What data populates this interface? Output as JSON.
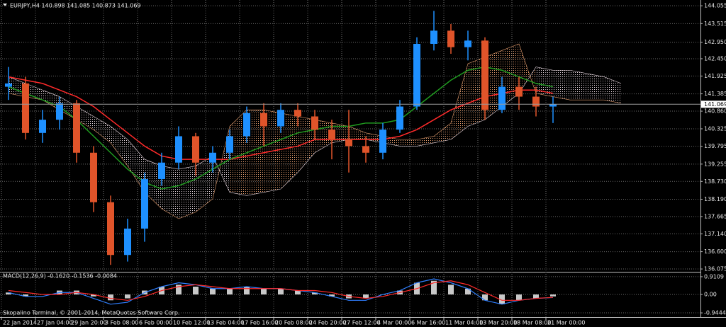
{
  "chart_data": [
    {
      "type": "candlestick",
      "title": "EURJPY,H4  140.898 141.085 140.873 141.069",
      "last_price": 141.069,
      "ylim": [
        135.99,
        144.23
      ],
      "yticks": [
        144.055,
        143.515,
        {
          "value": 142.95,
          "label": "142.950"
        },
        {
          "value": 142.45,
          "label": "142.450"
        },
        141.925,
        141.385,
        {
          "value": 140.86,
          "label": "140.860"
        },
        140.325,
        139.795,
        139.255,
        {
          "value": 138.73,
          "label": "138.730"
        },
        {
          "value": 138.19,
          "label": "138.190"
        },
        137.665,
        {
          "value": 137.14,
          "label": "137.140"
        },
        {
          "value": 136.6,
          "label": "136.600"
        },
        136.075
      ],
      "grid": true,
      "up_color": "#1e90ff",
      "down_color": "#e0542a",
      "open": [
        141.6,
        141.7,
        140.2,
        140.6,
        141.1,
        139.6,
        138.1,
        136.5,
        137.3,
        138.8,
        139.3,
        140.1,
        139.3,
        139.6,
        140.1,
        140.8,
        140.4,
        140.9,
        140.7,
        140.3,
        140.0,
        139.8,
        139.6,
        140.3,
        141.0,
        142.9,
        143.3,
        142.8,
        143.0,
        140.9,
        141.6,
        141.3,
        141.0
      ],
      "high": [
        142.2,
        141.9,
        140.9,
        141.3,
        141.2,
        139.8,
        138.3,
        137.6,
        139.0,
        139.6,
        140.4,
        140.2,
        139.8,
        140.3,
        141.0,
        141.1,
        141.1,
        141.1,
        140.9,
        140.6,
        140.9,
        140.1,
        140.5,
        141.2,
        143.1,
        143.9,
        143.5,
        143.3,
        143.1,
        141.9,
        141.9,
        141.6,
        141.3
      ],
      "low": [
        141.2,
        140.0,
        139.9,
        140.3,
        139.3,
        137.8,
        136.2,
        136.3,
        136.9,
        138.6,
        139.1,
        138.9,
        139.0,
        139.4,
        139.9,
        139.8,
        140.2,
        140.4,
        140.0,
        139.4,
        139.0,
        139.3,
        139.4,
        140.2,
        140.9,
        142.7,
        142.6,
        142.4,
        140.6,
        140.8,
        140.9,
        140.7,
        140.5
      ],
      "close": [
        141.7,
        140.2,
        140.6,
        141.1,
        139.6,
        138.1,
        136.5,
        137.3,
        138.8,
        139.3,
        140.1,
        139.3,
        139.6,
        140.1,
        140.8,
        140.4,
        140.9,
        140.7,
        140.3,
        140.0,
        139.8,
        139.6,
        140.3,
        141.0,
        142.9,
        143.3,
        142.8,
        143.0,
        140.9,
        141.6,
        141.3,
        141.0,
        141.069
      ],
      "lines": [
        {
          "color": "#ff2a2a",
          "values": [
            141.9,
            141.8,
            141.7,
            141.5,
            141.3,
            141.0,
            140.6,
            140.2,
            139.8,
            139.5,
            139.4,
            139.4,
            139.4,
            139.4,
            139.5,
            139.6,
            139.7,
            139.8,
            140.0,
            140.0,
            140.0,
            140.0,
            140.0,
            140.1,
            140.3,
            140.6,
            140.9,
            141.1,
            141.3,
            141.4,
            141.5,
            141.5,
            141.4
          ]
        },
        {
          "color": "#1f9a1f",
          "values": [
            141.6,
            141.4,
            141.2,
            141.0,
            140.6,
            140.1,
            139.6,
            139.1,
            138.7,
            138.5,
            138.6,
            138.8,
            139.1,
            139.4,
            139.6,
            139.8,
            140.0,
            140.2,
            140.3,
            140.4,
            140.4,
            140.5,
            140.5,
            140.6,
            141.0,
            141.4,
            141.8,
            142.1,
            142.2,
            142.1,
            141.9,
            141.7,
            141.6
          ]
        }
      ],
      "cloud": {
        "up_color": "#e8a070",
        "down_color": "#e8d8e0",
        "span_a": [
          141.4,
          141.3,
          141.2,
          140.9,
          140.6,
          140.3,
          139.9,
          139.2,
          138.4,
          137.9,
          137.6,
          137.8,
          138.2,
          140.4,
          140.9,
          140.9,
          140.8,
          140.7,
          140.6,
          140.5,
          140.4,
          140.2,
          140.1,
          140.0,
          140.0,
          140.1,
          140.5,
          142.3,
          142.5,
          142.7,
          142.9,
          141.4,
          141.3,
          141.2,
          141.2,
          141.2,
          141.1
        ],
        "span_b": [
          141.9,
          141.7,
          141.5,
          141.3,
          141.0,
          140.7,
          140.4,
          140.0,
          139.4,
          139.2,
          139.1,
          139.2,
          139.5,
          138.4,
          138.3,
          138.4,
          138.5,
          139.0,
          139.6,
          139.9,
          140.0,
          140.0,
          139.9,
          139.8,
          139.8,
          139.9,
          140.0,
          140.4,
          140.6,
          141.0,
          141.4,
          142.2,
          142.1,
          142.1,
          142.0,
          141.9,
          141.7
        ]
      }
    },
    {
      "type": "macd",
      "title": "MACD(12,26,9) -0.1620 -0.1536 -0.0084",
      "ylim": [
        -1.16,
        1.09
      ],
      "yticks": [
        0.9109,
        {
          "value": 0,
          "label": "0.00"
        },
        -0.9444
      ],
      "categories": [
        "22 Jan 2014",
        null,
        "27 Jan 04:00",
        null,
        "29 Jan 20:00",
        null,
        "3 Feb 08:00",
        null,
        "6 Feb 00:00",
        null,
        "10 Feb 12:00",
        null,
        "13 Feb 04:00",
        null,
        "17 Feb 16:00",
        null,
        "20 Feb 08:00",
        null,
        "24 Feb 20:00",
        null,
        "27 Feb 12:00",
        null,
        "4 Mar 00:00",
        null,
        "6 Mar 16:00",
        null,
        "11 Mar 04:00",
        null,
        "13 Mar 20:00",
        null,
        "18 Mar 08:00",
        null,
        "21 Mar 00:00"
      ],
      "histogram": {
        "color": "#c8c8c8",
        "values": [
          0.1,
          -0.1,
          0.0,
          0.2,
          0.2,
          -0.1,
          -0.3,
          -0.2,
          0.2,
          0.4,
          0.5,
          0.4,
          0.3,
          0.3,
          0.4,
          0.3,
          0.3,
          0.2,
          0.1,
          -0.1,
          -0.2,
          -0.2,
          0.0,
          0.2,
          0.6,
          0.7,
          0.5,
          0.3,
          -0.3,
          -0.5,
          -0.3,
          -0.2,
          -0.1
        ]
      },
      "lines": [
        {
          "color": "#2f7fff",
          "values": [
            0.1,
            -0.1,
            -0.1,
            0.1,
            0.1,
            -0.2,
            -0.5,
            -0.4,
            0.1,
            0.4,
            0.6,
            0.5,
            0.3,
            0.3,
            0.4,
            0.3,
            0.3,
            0.2,
            0.1,
            -0.1,
            -0.3,
            -0.3,
            0.0,
            0.2,
            0.6,
            0.8,
            0.6,
            0.3,
            -0.3,
            -0.5,
            -0.3,
            -0.2,
            -0.16
          ]
        },
        {
          "color": "#ff2a2a",
          "values": [
            0.2,
            0.1,
            0.0,
            0.0,
            0.1,
            0.0,
            -0.2,
            -0.3,
            -0.1,
            0.2,
            0.4,
            0.5,
            0.4,
            0.3,
            0.3,
            0.3,
            0.3,
            0.2,
            0.2,
            0.1,
            -0.1,
            -0.2,
            -0.1,
            0.1,
            0.3,
            0.6,
            0.7,
            0.5,
            0.1,
            -0.3,
            -0.3,
            -0.2,
            -0.15
          ]
        }
      ]
    }
  ],
  "footer": "Skopalino Terminal, © 2001-2014, MetaQuotes Software Corp."
}
